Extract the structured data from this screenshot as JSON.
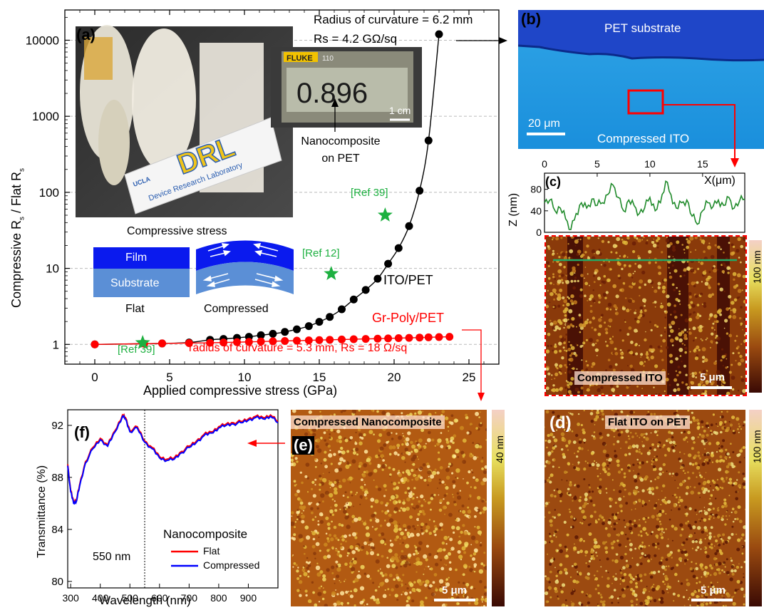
{
  "panel_a": {
    "letter": "(a)",
    "ylabel_parts": {
      "pre": "Compressive R",
      "sub1": "s",
      "mid": " / Flat R",
      "sub2": "s"
    },
    "xlabel": "Applied compressive stress (GPa)",
    "annotation_top_line1": "Radius of curvature = 6.2 mm",
    "annotation_top_line2": "Rs = 4.2 GΩ/sq",
    "series_label_ito": "ITO/PET",
    "series_label_gr": "Gr-Poly/PET",
    "annotation_bottom": "radius of curvature = 5.3 mm, Rs = 18 Ω/sq",
    "ref_labels": [
      "[Ref 39]",
      "[Ref 12]",
      "[Ref 39]"
    ],
    "photo_text": {
      "multimeter_value": "0.896",
      "multimeter_brand": "FLUKE",
      "multimeter_model": "110",
      "scale": "1 cm",
      "logo": "DRL",
      "logo_sub": "Device Research Laboratory",
      "logo_ucla": "UCLA"
    },
    "nanocomposite_label_line1": "Nanocomposite",
    "nanocomposite_label_line2": "on PET",
    "schematic": {
      "title": "Compressive stress",
      "film": "Film",
      "substrate": "Substrate",
      "flat": "Flat",
      "compressed": "Compressed"
    }
  },
  "panel_b": {
    "letter": "(b)",
    "pet_label": "PET substrate",
    "ito_label": "Compressed ITO",
    "scale": "20 μm"
  },
  "panel_c": {
    "letter": "(c)",
    "ylabel": "Z (nm)",
    "xlabel": "X(μm)",
    "afm_label": "Compressed ITO",
    "scale": "5 μm",
    "colorbar": "100 nm"
  },
  "panel_d": {
    "letter": "(d)",
    "afm_label": "Flat ITO on PET",
    "scale": "5 μm",
    "colorbar": "100 nm"
  },
  "panel_e": {
    "letter": "(e)",
    "afm_label": "Compressed Nanocomposite",
    "scale": "5 μm",
    "colorbar": "40 nm"
  },
  "panel_f": {
    "letter": "(f)",
    "ylabel": "Transmittance (%)",
    "xlabel": "Wavelength (nm)",
    "marker_label": "550 nm",
    "legend_title": "Nanocomposite",
    "legend": [
      "Flat",
      "Compressed"
    ]
  },
  "colors": {
    "ito": "#000000",
    "gr": "#ff0000",
    "ref": "#1db040",
    "flat": "#ff0000",
    "compressed": "#0000ff",
    "film": "#0000ff",
    "substrate": "#5b8fd6"
  },
  "chart_data": [
    {
      "type": "line",
      "title": "",
      "xlabel": "Applied compressive stress (GPa)",
      "ylabel": "Compressive Rs / Flat Rs",
      "xlim": [
        -2,
        27
      ],
      "ylim": [
        0.55,
        25000
      ],
      "yscale": "log",
      "xticks": [
        0,
        5,
        10,
        15,
        20,
        25
      ],
      "yticks": [
        1,
        10,
        100,
        1000,
        10000
      ],
      "series": [
        {
          "name": "ITO/PET",
          "x": [
            0,
            4.5,
            6.3,
            7.7,
            8.6,
            9.5,
            10.3,
            11.1,
            11.9,
            12.7,
            13.5,
            14.3,
            15.0,
            15.7,
            16.5,
            17.3,
            18.1,
            18.9,
            19.6,
            20.3,
            21.0,
            21.7,
            22.3,
            23.0
          ],
          "y": [
            1.0,
            1.03,
            1.06,
            1.15,
            1.18,
            1.22,
            1.26,
            1.32,
            1.38,
            1.46,
            1.58,
            1.74,
            1.98,
            2.3,
            2.9,
            3.9,
            5.2,
            7.3,
            11.5,
            18.5,
            36,
            105,
            480,
            12000
          ]
        },
        {
          "name": "Gr-Poly/PET",
          "x": [
            0,
            3.3,
            4.5,
            6.3,
            7.7,
            8.6,
            9.5,
            10.3,
            11.1,
            11.9,
            12.7,
            13.5,
            14.3,
            15.0,
            15.7,
            16.5,
            17.3,
            18.1,
            18.9,
            19.6,
            20.3,
            21.0,
            21.7,
            22.3,
            23.0,
            23.7
          ],
          "y": [
            1.0,
            1.02,
            1.03,
            1.04,
            1.05,
            1.06,
            1.07,
            1.08,
            1.09,
            1.1,
            1.11,
            1.12,
            1.13,
            1.14,
            1.15,
            1.16,
            1.17,
            1.18,
            1.19,
            1.2,
            1.21,
            1.22,
            1.23,
            1.24,
            1.25,
            1.26
          ]
        }
      ],
      "reference_points": [
        {
          "label": "[Ref 39]",
          "x": 3.2,
          "y": 1.05
        },
        {
          "label": "[Ref 12]",
          "x": 15.8,
          "y": 8.5
        },
        {
          "label": "[Ref 39]",
          "x": 19.4,
          "y": 50
        }
      ]
    },
    {
      "type": "line",
      "title": "",
      "xlabel": "X(μm)",
      "ylabel": "Z (nm)",
      "xlim": [
        0,
        19
      ],
      "ylim": [
        0,
        110
      ],
      "xticks": [
        0,
        5,
        10,
        15
      ],
      "yticks": [
        0,
        40,
        80
      ],
      "series": [
        {
          "name": "",
          "x": [
            0,
            0.5,
            1.0,
            1.5,
            2.0,
            2.5,
            3.0,
            3.5,
            4.0,
            4.5,
            5.0,
            5.5,
            6.0,
            6.5,
            7.0,
            7.5,
            8.0,
            8.5,
            9.0,
            9.5,
            10.0,
            10.5,
            11.0,
            11.5,
            12.0,
            12.5,
            13.0,
            13.5,
            14.0,
            14.5,
            15.0,
            15.5,
            16.0,
            16.5,
            17.0,
            17.5,
            18.0,
            18.5,
            19.0
          ],
          "y": [
            55,
            60,
            40,
            45,
            25,
            5,
            35,
            55,
            45,
            62,
            50,
            55,
            70,
            88,
            65,
            40,
            60,
            50,
            35,
            45,
            65,
            40,
            55,
            95,
            70,
            45,
            55,
            60,
            30,
            15,
            40,
            55,
            48,
            60,
            50,
            65,
            45,
            58,
            62
          ]
        }
      ]
    },
    {
      "type": "line",
      "title": "",
      "xlabel": "Wavelength (nm)",
      "ylabel": "Transmittance (%)",
      "xlim": [
        290,
        1000
      ],
      "ylim": [
        79.5,
        93.2
      ],
      "xticks": [
        300,
        400,
        500,
        600,
        700,
        800,
        900
      ],
      "yticks": [
        80,
        84,
        88,
        92
      ],
      "series": [
        {
          "name": "Flat",
          "x": [
            290,
            300,
            310,
            320,
            330,
            350,
            375,
            400,
            425,
            450,
            475,
            485,
            500,
            525,
            550,
            575,
            600,
            625,
            650,
            675,
            700,
            725,
            750,
            775,
            800,
            825,
            850,
            875,
            900,
            925,
            950,
            975,
            1000
          ],
          "y": [
            89.0,
            87.0,
            86.1,
            86.3,
            87.4,
            89.2,
            90.3,
            91.0,
            90.5,
            91.6,
            92.8,
            92.6,
            91.6,
            91.9,
            90.8,
            90.3,
            89.6,
            89.4,
            89.5,
            90.0,
            90.4,
            90.8,
            91.3,
            91.5,
            91.9,
            92.1,
            92.2,
            92.3,
            92.5,
            92.7,
            92.6,
            92.8,
            92.3
          ]
        },
        {
          "name": "Compressed",
          "x": [
            290,
            300,
            310,
            320,
            330,
            350,
            375,
            400,
            425,
            450,
            475,
            485,
            500,
            525,
            550,
            575,
            600,
            625,
            650,
            675,
            700,
            725,
            750,
            775,
            800,
            825,
            850,
            875,
            900,
            925,
            950,
            975,
            1000
          ],
          "y": [
            88.9,
            86.9,
            86.0,
            86.2,
            87.3,
            89.1,
            90.2,
            90.9,
            90.4,
            91.5,
            92.7,
            92.5,
            91.5,
            91.8,
            90.7,
            90.2,
            89.5,
            89.3,
            89.4,
            89.9,
            90.3,
            90.7,
            91.2,
            91.4,
            91.8,
            92.0,
            92.1,
            92.2,
            92.4,
            92.6,
            92.5,
            92.7,
            92.2
          ]
        }
      ]
    }
  ]
}
